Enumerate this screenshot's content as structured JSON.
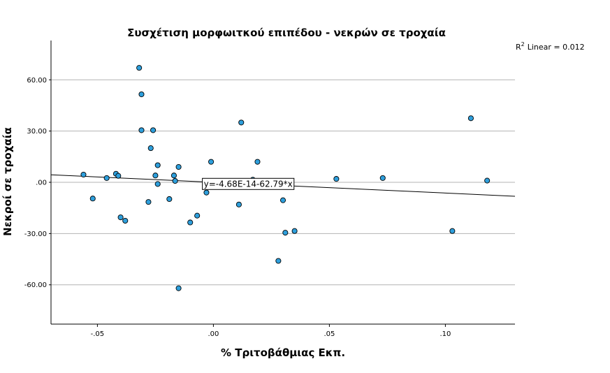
{
  "chart_data": {
    "type": "scatter",
    "title": "Συσχέτιση μορφωιτκού επιπέδου - νεκρών σε τροχαία",
    "xlabel": "% Τριτοβάθμιας Εκπ.",
    "ylabel": "Νεκροί σε τροχαία",
    "xlim": [
      -0.07,
      0.13
    ],
    "ylim": [
      -83,
      83
    ],
    "x_ticks": [
      -0.05,
      0.0,
      0.05,
      0.1
    ],
    "x_tick_labels": [
      "-.05",
      ".00",
      ".05",
      ".10"
    ],
    "y_ticks": [
      60,
      30,
      0,
      -30,
      -60
    ],
    "y_tick_labels": [
      "60.00",
      "30.00",
      ".00",
      "-30.00",
      "-60.00"
    ],
    "grid": "horizontal",
    "r2_label": "R",
    "r2_sup": "2",
    "r2_text": "Linear = 0.012",
    "fit_line": {
      "intercept": -4.68e-14,
      "slope": -62.79
    },
    "equation_label": "y=-4.68E-14-62.79*x",
    "marker_color": "#2e9fdc",
    "points": [
      {
        "x": -0.056,
        "y": 4.5
      },
      {
        "x": -0.052,
        "y": -9.5
      },
      {
        "x": -0.046,
        "y": 2.5
      },
      {
        "x": -0.042,
        "y": 5.0
      },
      {
        "x": -0.041,
        "y": 3.8
      },
      {
        "x": -0.04,
        "y": -20.5
      },
      {
        "x": -0.038,
        "y": -22.5
      },
      {
        "x": -0.032,
        "y": 67.0
      },
      {
        "x": -0.031,
        "y": 51.5
      },
      {
        "x": -0.031,
        "y": 30.5
      },
      {
        "x": -0.028,
        "y": -11.5
      },
      {
        "x": -0.027,
        "y": 20.0
      },
      {
        "x": -0.026,
        "y": 30.5
      },
      {
        "x": -0.025,
        "y": 4.0
      },
      {
        "x": -0.024,
        "y": -1.0
      },
      {
        "x": -0.024,
        "y": 10.0
      },
      {
        "x": -0.019,
        "y": -9.8
      },
      {
        "x": -0.017,
        "y": 4.0
      },
      {
        "x": -0.0165,
        "y": 0.8
      },
      {
        "x": -0.015,
        "y": 9.0
      },
      {
        "x": -0.015,
        "y": -62.0
      },
      {
        "x": -0.01,
        "y": -23.5
      },
      {
        "x": -0.007,
        "y": -19.5
      },
      {
        "x": -0.003,
        "y": -6.0
      },
      {
        "x": -0.001,
        "y": 12.0
      },
      {
        "x": 0.011,
        "y": -13.0
      },
      {
        "x": 0.012,
        "y": 35.0
      },
      {
        "x": 0.017,
        "y": 1.5
      },
      {
        "x": 0.019,
        "y": 12.0
      },
      {
        "x": 0.028,
        "y": -46.0
      },
      {
        "x": 0.03,
        "y": -10.5
      },
      {
        "x": 0.031,
        "y": -29.5
      },
      {
        "x": 0.035,
        "y": -28.5
      },
      {
        "x": 0.053,
        "y": 2.0
      },
      {
        "x": 0.073,
        "y": 2.5
      },
      {
        "x": 0.103,
        "y": -28.5
      },
      {
        "x": 0.111,
        "y": 37.5
      },
      {
        "x": 0.118,
        "y": 1.0
      }
    ]
  }
}
